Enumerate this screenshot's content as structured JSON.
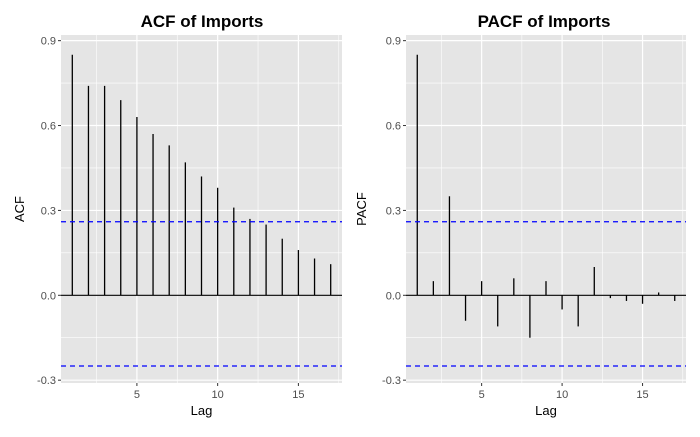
{
  "chart_data": [
    {
      "type": "bar",
      "title": "ACF of Imports",
      "xlabel": "Lag",
      "ylabel": "ACF",
      "xlim": [
        0.3,
        17.7
      ],
      "ylim": [
        -0.31,
        0.92
      ],
      "x_ticks": [
        5,
        10,
        15
      ],
      "x_tick_labels": [
        "5",
        "10",
        "15"
      ],
      "y_ticks": [
        -0.3,
        0.0,
        0.3,
        0.6,
        0.9
      ],
      "y_tick_labels": [
        "-0.3",
        "0.0",
        "0.3",
        "0.6",
        "0.9"
      ],
      "grid": true,
      "lags": [
        1,
        2,
        3,
        4,
        5,
        6,
        7,
        8,
        9,
        10,
        11,
        12,
        13,
        14,
        15,
        16,
        17
      ],
      "values": [
        0.85,
        0.74,
        0.74,
        0.69,
        0.63,
        0.57,
        0.53,
        0.47,
        0.42,
        0.38,
        0.31,
        0.27,
        0.25,
        0.2,
        0.16,
        0.13,
        0.11
      ],
      "confidence_limits": [
        0.26,
        -0.25
      ],
      "colors": {
        "panel": "#e5e5e5",
        "grid": "#ffffff",
        "bar": "#000000",
        "limit": "#0000ff"
      }
    },
    {
      "type": "bar",
      "title": "PACF of Imports",
      "xlabel": "Lag",
      "ylabel": "PACF",
      "xlim": [
        0.3,
        17.7
      ],
      "ylim": [
        -0.31,
        0.92
      ],
      "x_ticks": [
        5,
        10,
        15
      ],
      "x_tick_labels": [
        "5",
        "10",
        "15"
      ],
      "y_ticks": [
        -0.3,
        0.0,
        0.3,
        0.6,
        0.9
      ],
      "y_tick_labels": [
        "-0.3",
        "0.0",
        "0.3",
        "0.6",
        "0.9"
      ],
      "grid": true,
      "lags": [
        1,
        2,
        3,
        4,
        5,
        6,
        7,
        8,
        9,
        10,
        11,
        12,
        13,
        14,
        15,
        16,
        17
      ],
      "values": [
        0.85,
        0.05,
        0.35,
        -0.09,
        0.05,
        -0.11,
        0.06,
        -0.15,
        0.05,
        -0.05,
        -0.11,
        0.1,
        -0.01,
        -0.02,
        -0.03,
        0.01,
        -0.02
      ],
      "confidence_limits": [
        0.26,
        -0.25
      ],
      "colors": {
        "panel": "#e5e5e5",
        "grid": "#ffffff",
        "bar": "#000000",
        "limit": "#0000ff"
      }
    }
  ]
}
